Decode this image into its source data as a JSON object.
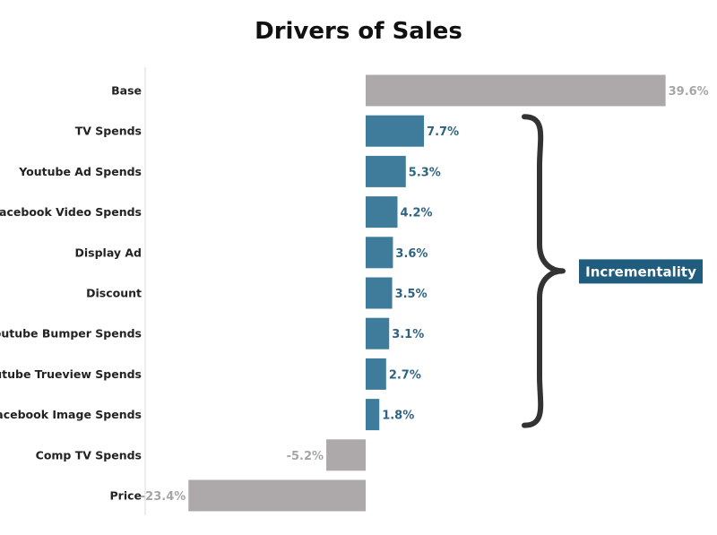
{
  "chart_data": {
    "type": "bar",
    "orientation": "horizontal",
    "title": "Drivers of Sales",
    "xlabel": "",
    "ylabel": "",
    "xlim": [
      -23.4,
      39.6
    ],
    "grid": false,
    "value_suffix": "%",
    "categories": [
      "Base",
      "TV Spends",
      "Youtube Ad Spends",
      "Facebook Video Spends",
      "Display Ad",
      "Discount",
      "Youtube Bumper Spends",
      "Youtube Trueview Spends",
      "Facebook Image Spends",
      "Comp TV Spends",
      "Price"
    ],
    "values": [
      39.6,
      7.7,
      5.3,
      4.2,
      3.6,
      3.5,
      3.1,
      2.7,
      1.8,
      -5.2,
      -23.4
    ],
    "value_labels": [
      "39.6%",
      "7.7%",
      "5.3%",
      "4.2%",
      "3.6%",
      "3.5%",
      "3.1%",
      "2.7%",
      "1.8%",
      "-5.2%",
      "-23.4%"
    ],
    "highlighted": [
      false,
      true,
      true,
      true,
      true,
      true,
      true,
      true,
      true,
      false,
      false
    ],
    "colors": {
      "highlight": "#3F7B9B",
      "neutral": "#ADA8A9",
      "highlight_text": "#2E6382",
      "neutral_text": "#A6A6A6",
      "bracket": "#333333",
      "callout_bg": "#1F5C7E"
    },
    "annotation": {
      "label": "Incrementality",
      "spans": [
        "TV Spends",
        "Facebook Image Spends"
      ]
    }
  }
}
